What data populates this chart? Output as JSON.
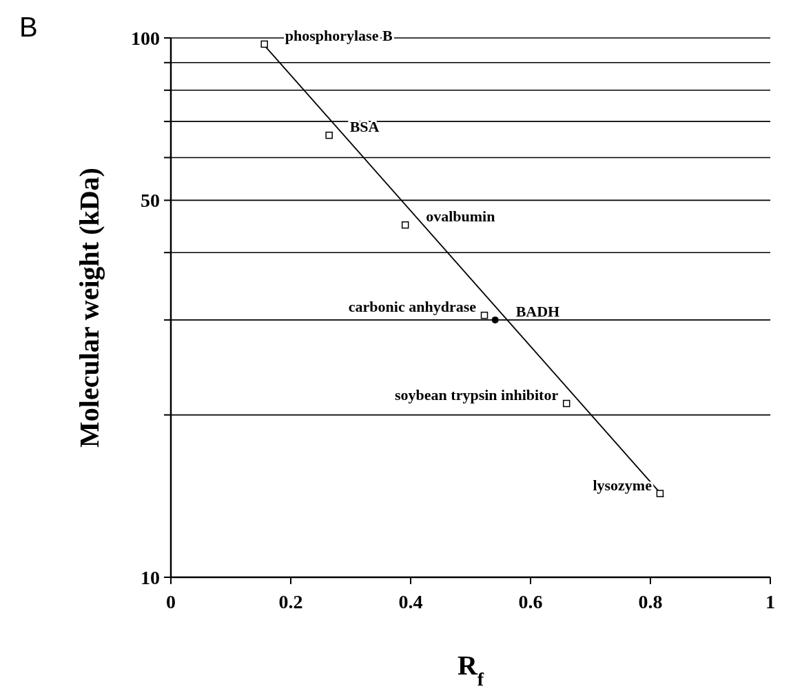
{
  "chart_data": {
    "type": "scatter",
    "title": "B",
    "xlabel": "R$_{f}$",
    "ylabel": "Molecular weight (kDa)",
    "log": "y",
    "grid": "y",
    "xlim": [
      0,
      1
    ],
    "ylim": [
      10,
      100
    ],
    "xticks": [
      0,
      0.2,
      0.4,
      0.6,
      0.8,
      1
    ],
    "yticks": [
      10,
      {
        "value": 20,
        "label": null
      },
      {
        "value": 30,
        "label": null
      },
      {
        "value": 40,
        "label": null
      },
      50,
      {
        "value": 60,
        "label": null
      },
      {
        "value": 70,
        "label": null
      },
      {
        "value": 80,
        "label": null
      },
      {
        "value": 90,
        "label": null
      },
      100
    ],
    "series": [
      {
        "color": "#000000",
        "marker": "square",
        "x": [
          0.156,
          0.264,
          0.391,
          0.523,
          0.66,
          0.816
        ],
        "values": [
          97.4,
          66,
          45,
          30.6,
          21,
          14.3
        ]
      },
      {
        "color": "#000000",
        "marker": "circle",
        "x": [
          0.541
        ],
        "values": [
          30
        ]
      },
      {
        "type": "line",
        "color": "#000000",
        "marker": "none",
        "x": [
          0.152,
          0.822
        ],
        "values": [
          98,
          14.1
        ]
      }
    ],
    "annotations": [
      {
        "text": "phosphorylase B",
        "x": 0.156,
        "y": 97.4
      },
      {
        "text": "BSA",
        "x": 0.264,
        "y": 66
      },
      {
        "text": "ovalbumin",
        "x": 0.391,
        "y": 45
      },
      {
        "text": "carbonic anhydrase",
        "x": 0.523,
        "y": 30.6
      },
      {
        "text": "BADH",
        "x": 0.541,
        "y": 30
      },
      {
        "text": "soybean trypsin inhibitor",
        "x": 0.66,
        "y": 21
      },
      {
        "text": "lysozyme",
        "x": 0.816,
        "y": 14.3
      }
    ]
  }
}
